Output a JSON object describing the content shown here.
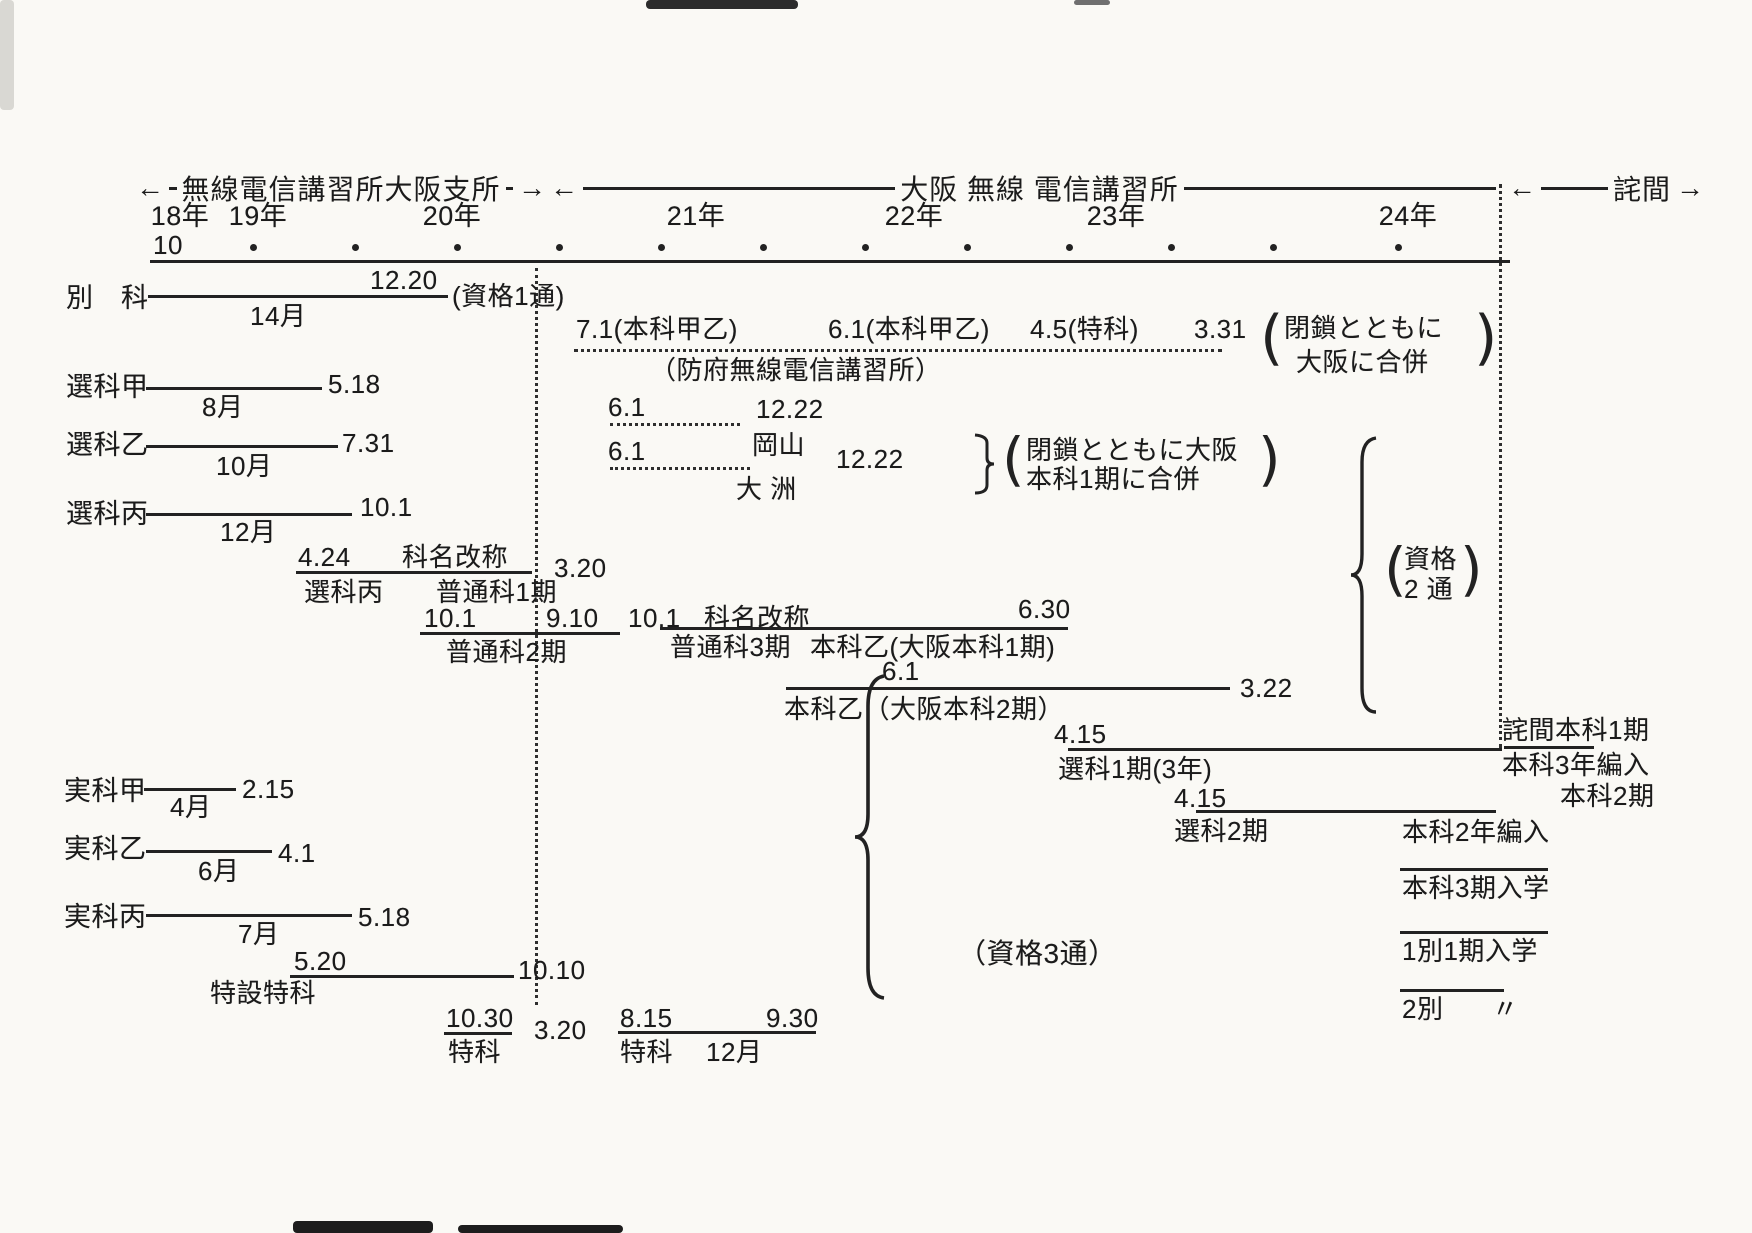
{
  "colors": {
    "ink": "#1c1c1c",
    "paper": "#faf9f5"
  },
  "glyphs": {
    "arrow_left": "←",
    "arrow_right": "→",
    "open_paren": "(",
    "close_paren": ")",
    "ditto": "〃"
  },
  "header": {
    "era_left": "無線電信講習所大阪支所",
    "era_main": "大阪 無線 電信講習所",
    "era_right": "詫間",
    "years": [
      "18年",
      "19年",
      "20年",
      "21年",
      "22年",
      "23年",
      "24年"
    ],
    "start_month": "10"
  },
  "left_rows": {
    "bekka": {
      "label": "別　科",
      "end": "12.20",
      "duration": "14月",
      "note": "(資格1通)"
    },
    "senka_ko": {
      "label": "選科甲",
      "duration": "8月",
      "end": "5.18"
    },
    "senka_otsu": {
      "label": "選科乙",
      "duration": "10月",
      "end": "7.31"
    },
    "senka_hei": {
      "label": "選科丙",
      "duration": "12月",
      "end": "10.1"
    },
    "futsuka1": {
      "start": "4.24",
      "rename": "科名改称",
      "old": "選科丙",
      "name": "普通科1期",
      "end": "3.20"
    },
    "futsuka2": {
      "start": "10.1",
      "end": "9.10",
      "name": "普通科2期"
    },
    "futsuka3": {
      "start": "10.1",
      "rename": "科名改称",
      "end": "6.30",
      "name": "普通科3期",
      "name2": "本科乙(大阪本科1期)"
    },
    "honka_osaka2": {
      "start": "6.1",
      "name": "本科乙（大阪本科2期）",
      "end": "3.22"
    },
    "jikka_ko": {
      "label": "実科甲",
      "duration": "4月",
      "end": "2.15"
    },
    "jikka_otsu": {
      "label": "実科乙",
      "duration": "6月",
      "end": "4.1"
    },
    "jikka_hei": {
      "label": "実科丙",
      "duration": "7月",
      "end": "5.18"
    },
    "tokusetsu": {
      "start": "5.20",
      "name": "特設特科",
      "end": "10.10"
    },
    "tokka1": {
      "start": "10.30",
      "name": "特科",
      "end": "3.20"
    },
    "tokka2": {
      "start": "8.15",
      "name": "特科",
      "duration": "12月",
      "end": "9.30"
    }
  },
  "boufu": {
    "d1": "7.1(本科甲乙)",
    "d2": "6.1(本科甲乙)",
    "d3": "4.5(特科)",
    "d4": "3.31",
    "close1": "閉鎖とともに",
    "close2": "大阪に合併",
    "name": "（防府無線電信講習所）",
    "okayama": {
      "start": "6.1",
      "end": "12.22"
    },
    "oshu": {
      "start": "6.1",
      "place": "岡山",
      "end": "12.22",
      "place2": "大 洲"
    },
    "merge1": "閉鎖とともに大阪",
    "merge2": "本科1期に合併"
  },
  "right_rows": {
    "senka1": {
      "start": "4.15",
      "name": "選科1期(3年)"
    },
    "senka2": {
      "start": "4.15",
      "name": "選科2期"
    },
    "takuma1": "詫間本科1期",
    "note1": "本科3年編入",
    "honka2": "本科2期",
    "note2": "本科2年編入",
    "entry3": "本科3期入学",
    "entry_b1": "1別1期入学",
    "entry_b2": "2別"
  },
  "badges": {
    "shikaku2a": "資格",
    "shikaku2b": "2 通",
    "shikaku3": "（資格3通）"
  }
}
